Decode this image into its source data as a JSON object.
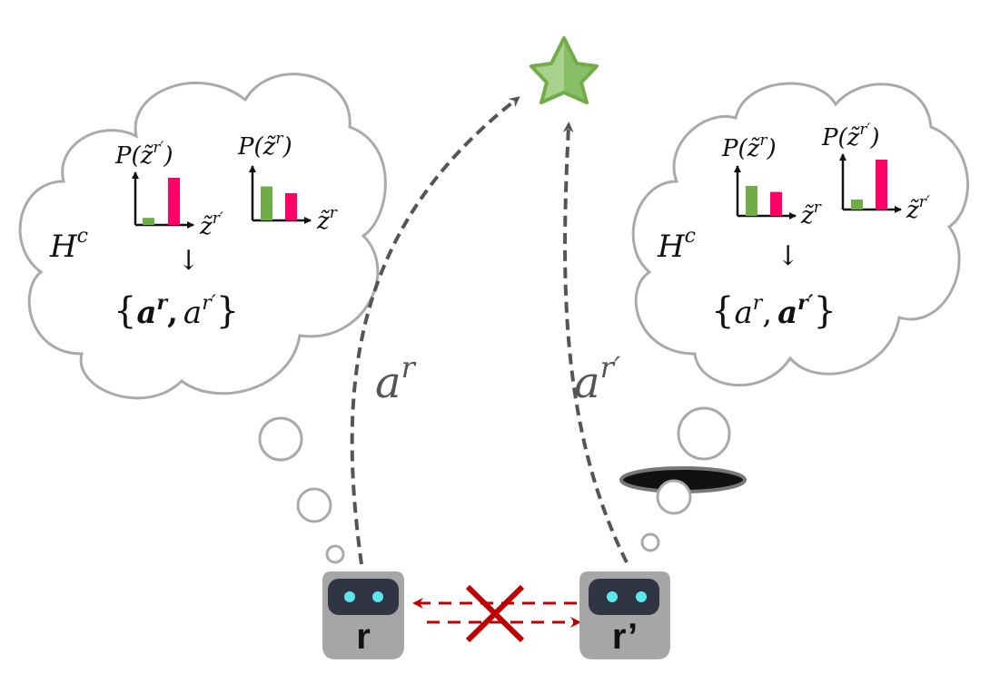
{
  "goal": {
    "icon": "star-icon",
    "color": "#70ad47"
  },
  "robots": {
    "left": {
      "label": "r",
      "body_color": "#a6a6a6",
      "eye_color": "#5ee6ef"
    },
    "right": {
      "label": "r’",
      "body_color": "#a6a6a6",
      "eye_color": "#5ee6ef"
    }
  },
  "edges": {
    "left_action": {
      "base": "a",
      "sup": "r"
    },
    "right_action": {
      "base": "a",
      "sup": "r′"
    }
  },
  "communication": {
    "blocked": true,
    "arrow_color": "#c00000",
    "cross_color": "#c00000"
  },
  "left_thought": {
    "history": {
      "base": "H",
      "sup": "c"
    },
    "chart1": {
      "ylabel_prefix": "P(",
      "ylabel_var": "z̃",
      "ylabel_sup": "r′",
      "ylabel_suffix": ")",
      "xlabel_var": "z̃",
      "xlabel_sup": "r′"
    },
    "chart2": {
      "ylabel_prefix": "P(",
      "ylabel_var": "z̃",
      "ylabel_sup": "r",
      "ylabel_suffix": ")",
      "xlabel_var": "z̃",
      "xlabel_sup": "r"
    },
    "arrow": "↓",
    "action_set": {
      "open": "{",
      "a1": "a",
      "a1_sup": "r",
      "comma": ",",
      "a2": "a",
      "a2_sup": "r′",
      "close": "}",
      "bold": "first"
    }
  },
  "right_thought": {
    "history": {
      "base": "H",
      "sup": "c"
    },
    "chart1": {
      "ylabel_prefix": "P(",
      "ylabel_var": "z̃",
      "ylabel_sup": "r",
      "ylabel_suffix": ")",
      "xlabel_var": "z̃",
      "xlabel_sup": "r"
    },
    "chart2": {
      "ylabel_prefix": "P(",
      "ylabel_var": "z̃",
      "ylabel_sup": "r′",
      "ylabel_suffix": ")",
      "xlabel_var": "z̃",
      "xlabel_sup": "r′"
    },
    "arrow": "↓",
    "action_set": {
      "open": "{",
      "a1": "a",
      "a1_sup": "r",
      "comma": ",",
      "a2": "a",
      "a2_sup": "r′",
      "close": "}",
      "bold": "second"
    }
  },
  "chart_data": [
    {
      "type": "bar",
      "panel": "left-thought-1",
      "series": [
        {
          "values": [
            0.15,
            1.0
          ]
        }
      ],
      "colors": [
        "#70ad47",
        "#ff0066"
      ]
    },
    {
      "type": "bar",
      "panel": "left-thought-2",
      "series": [
        {
          "values": [
            0.75,
            0.6
          ]
        }
      ],
      "colors": [
        "#70ad47",
        "#ff0066"
      ]
    },
    {
      "type": "bar",
      "panel": "right-thought-1",
      "series": [
        {
          "values": [
            0.75,
            0.6
          ]
        }
      ],
      "colors": [
        "#70ad47",
        "#ff0066"
      ]
    },
    {
      "type": "bar",
      "panel": "right-thought-2",
      "series": [
        {
          "values": [
            0.2,
            1.0
          ]
        }
      ],
      "colors": [
        "#70ad47",
        "#ff0066"
      ]
    }
  ]
}
